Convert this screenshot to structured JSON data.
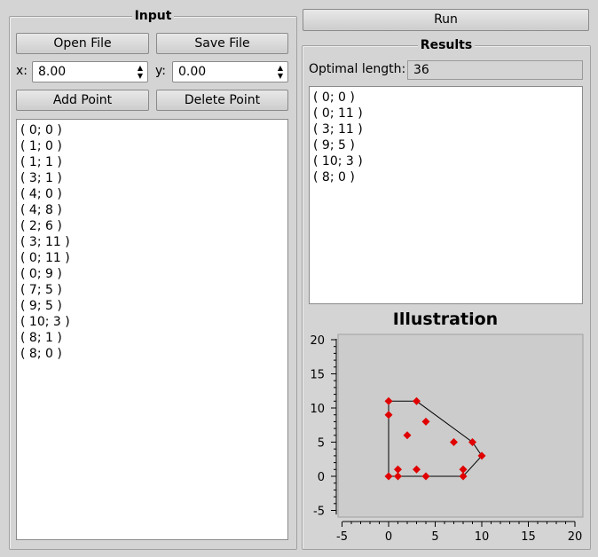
{
  "input": {
    "title": "Input",
    "open_file_label": "Open File",
    "save_file_label": "Save File",
    "x_label": "x:",
    "x_value": "8.00",
    "y_label": "y:",
    "y_value": "0.00",
    "add_point_label": "Add Point",
    "delete_point_label": "Delete Point",
    "points": [
      "( 0; 0 )",
      "( 1; 0 )",
      "( 1; 1 )",
      "( 3; 1 )",
      "( 4; 0 )",
      "( 4; 8 )",
      "( 2; 6 )",
      "( 3; 11 )",
      "( 0; 11 )",
      "( 0; 9 )",
      "( 7; 5 )",
      "( 9; 5 )",
      "( 10; 3 )",
      "( 8; 1 )",
      "( 8; 0 )"
    ]
  },
  "run_label": "Run",
  "results": {
    "title": "Results",
    "optimal_length_label": "Optimal length:",
    "optimal_length_value": "36",
    "hull_points": [
      "( 0; 0 )",
      "( 0; 11 )",
      "( 3; 11 )",
      "( 9; 5 )",
      "( 10; 3 )",
      "( 8; 0 )"
    ]
  },
  "illustration": {
    "title": "Illustration",
    "chart_data": {
      "type": "scatter",
      "x_ticks": [
        "-5",
        "0",
        "5",
        "10",
        "15",
        "20"
      ],
      "y_ticks": [
        "-5",
        "0",
        "5",
        "10",
        "15",
        "20"
      ],
      "xlim": [
        -5,
        20
      ],
      "ylim": [
        -5,
        20
      ],
      "points": [
        [
          0,
          0
        ],
        [
          1,
          0
        ],
        [
          1,
          1
        ],
        [
          3,
          1
        ],
        [
          4,
          0
        ],
        [
          4,
          8
        ],
        [
          2,
          6
        ],
        [
          3,
          11
        ],
        [
          0,
          11
        ],
        [
          0,
          9
        ],
        [
          7,
          5
        ],
        [
          9,
          5
        ],
        [
          10,
          3
        ],
        [
          8,
          1
        ],
        [
          8,
          0
        ]
      ],
      "hull": [
        [
          0,
          0
        ],
        [
          0,
          11
        ],
        [
          3,
          11
        ],
        [
          9,
          5
        ],
        [
          10,
          3
        ],
        [
          8,
          0
        ]
      ],
      "point_color": "#e00000",
      "line_color": "#000000"
    }
  }
}
